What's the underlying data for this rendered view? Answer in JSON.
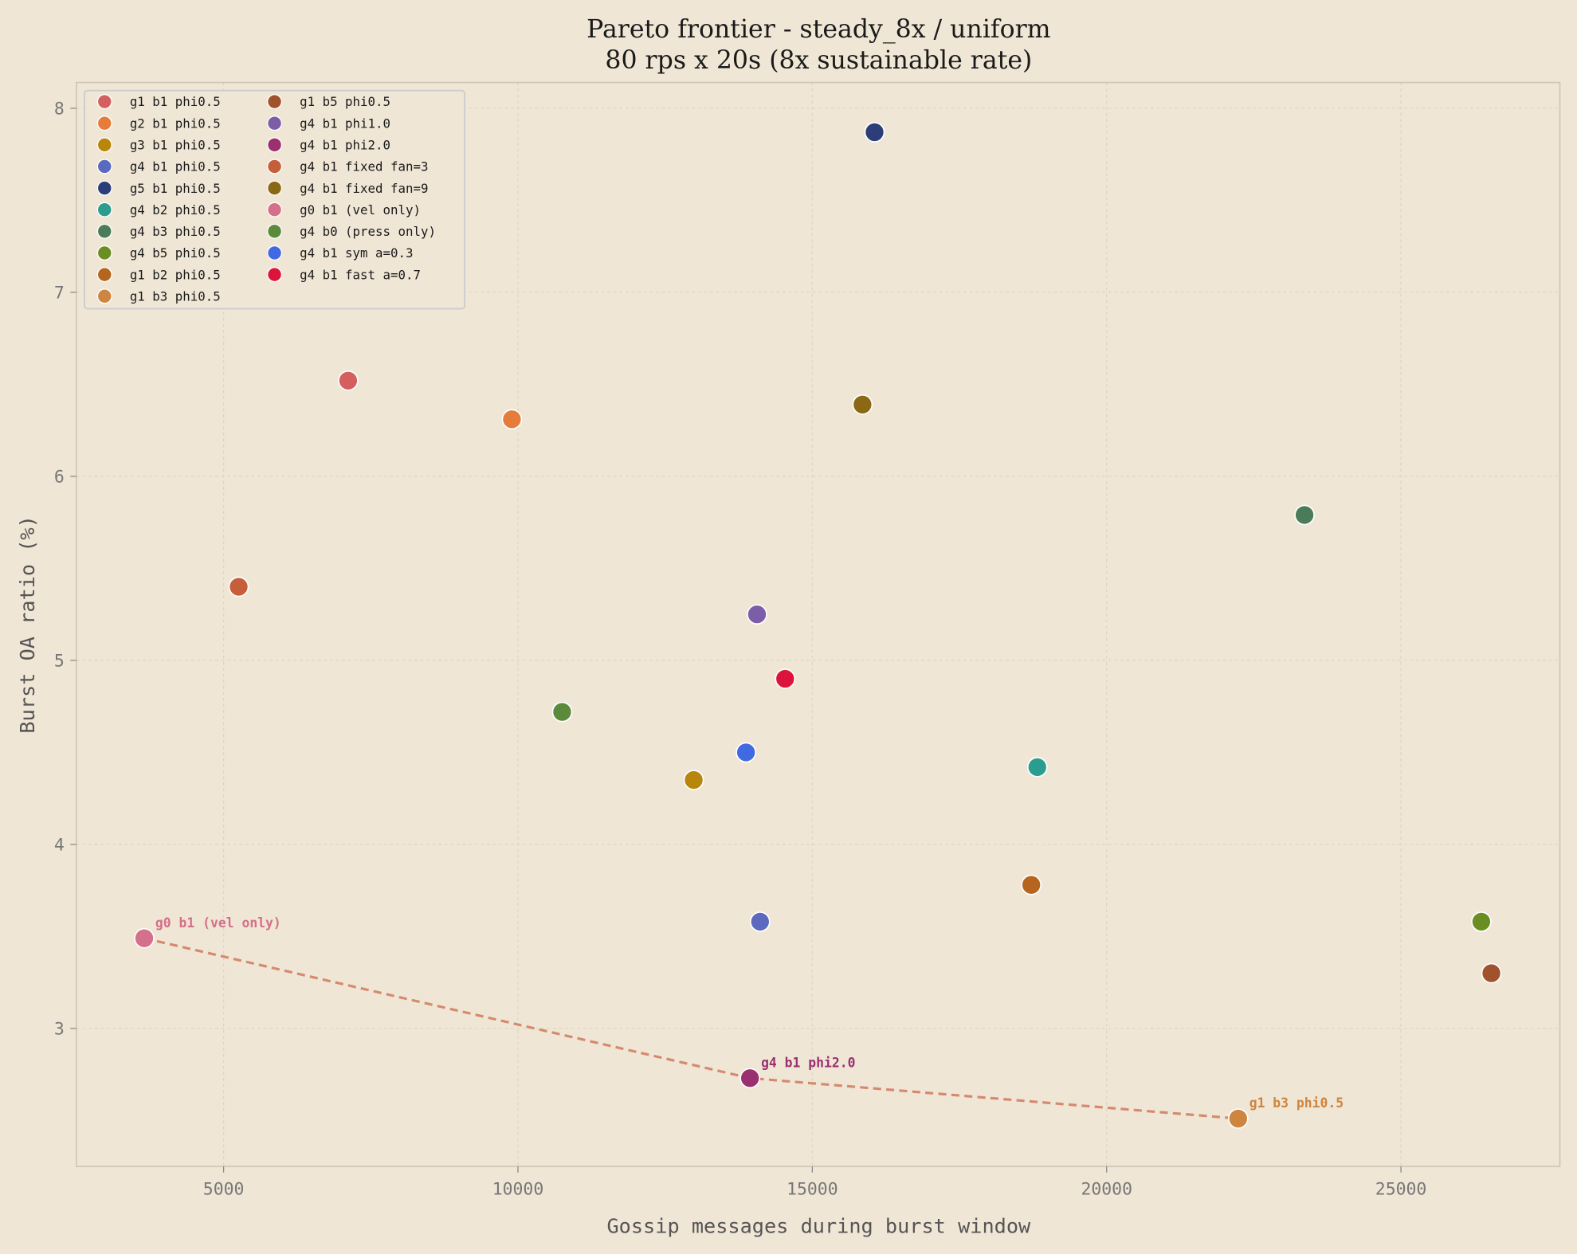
{
  "chart_data": {
    "type": "scatter",
    "title": "Pareto frontier - steady_8x / uniform",
    "subtitle": "80 rps x 20s  (8x sustainable rate)",
    "xlabel": "Gossip messages during burst window",
    "ylabel": "Burst OA ratio (%)",
    "xlim": [
      2500,
      27700
    ],
    "ylim": [
      2.25,
      8.14
    ],
    "xticks": [
      5000,
      10000,
      15000,
      20000,
      25000
    ],
    "yticks": [
      3,
      4,
      5,
      6,
      7,
      8
    ],
    "grid": true,
    "legend_placement": "top-left",
    "legend_columns": 2,
    "series": [
      {
        "name": "g1 b1 phi0.5",
        "color": "#d35f5f",
        "x": 7116,
        "y": 6.52
      },
      {
        "name": "g2 b1 phi0.5",
        "color": "#e57c3a",
        "x": 9898,
        "y": 6.31
      },
      {
        "name": "g3 b1 phi0.5",
        "color": "#b8860b",
        "x": 12986,
        "y": 4.35
      },
      {
        "name": "g4 b1 phi0.5",
        "color": "#5b6abf",
        "x": 14113,
        "y": 3.58
      },
      {
        "name": "g5 b1 phi0.5",
        "color": "#2c3e7a",
        "x": 16058,
        "y": 7.87
      },
      {
        "name": "g4 b2 phi0.5",
        "color": "#2a9d8f",
        "x": 18823,
        "y": 4.42
      },
      {
        "name": "g4 b3 phi0.5",
        "color": "#4a7c59",
        "x": 23362,
        "y": 5.79
      },
      {
        "name": "g4 b5 phi0.5",
        "color": "#6b8e23",
        "x": 26365,
        "y": 3.58
      },
      {
        "name": "g1 b2 phi0.5",
        "color": "#b5651d",
        "x": 18720,
        "y": 3.78
      },
      {
        "name": "g1 b3 phi0.5",
        "color": "#cd853f",
        "x": 22235,
        "y": 2.51
      },
      {
        "name": "g1 b5 phi0.5",
        "color": "#a0522d",
        "x": 26536,
        "y": 3.3
      },
      {
        "name": "g4 b1 phi1.0",
        "color": "#7b5ea7",
        "x": 14061,
        "y": 5.25
      },
      {
        "name": "g4 b1 phi2.0",
        "color": "#9b3070",
        "x": 13942,
        "y": 2.73
      },
      {
        "name": "g4 b1 fixed fan=3",
        "color": "#c65d3b",
        "x": 5256,
        "y": 5.4
      },
      {
        "name": "g4 b1 fixed fan=9",
        "color": "#8b6914",
        "x": 15853,
        "y": 6.39
      },
      {
        "name": "g0 b1 (vel only)",
        "color": "#d4708a",
        "x": 3652,
        "y": 3.49
      },
      {
        "name": "g4 b0 (press only)",
        "color": "#5a8a3a",
        "x": 10751,
        "y": 4.72
      },
      {
        "name": "g4 b1 sym a=0.3",
        "color": "#4169e1",
        "x": 13874,
        "y": 4.5
      },
      {
        "name": "g4 b1 fast a=0.7",
        "color": "#dc143c",
        "x": 14539,
        "y": 4.9
      }
    ],
    "frontier": {
      "color": "#d48a6e",
      "style": "dashed",
      "points": [
        "g0 b1 (vel only)",
        "g4 b1 phi2.0",
        "g1 b3 phi0.5"
      ]
    },
    "annotations": [
      "g0 b1 (vel only)",
      "g4 b1 phi2.0",
      "g1 b3 phi0.5"
    ]
  }
}
